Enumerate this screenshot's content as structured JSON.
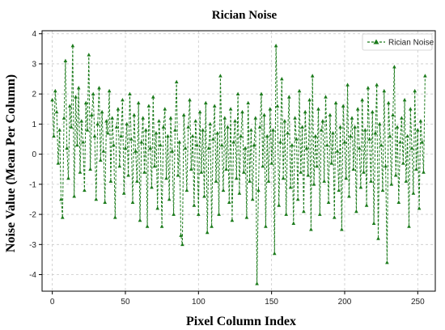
{
  "chart_data": {
    "type": "line",
    "title": "Rician Noise",
    "xlabel": "Pixel Column Index",
    "ylabel": "Noise Value (Mean Per Column)",
    "xlim": [
      -7,
      262
    ],
    "ylim": [
      -4.55,
      4.1
    ],
    "xticks": [
      0,
      50,
      100,
      150,
      200,
      250
    ],
    "yticks": [
      -4,
      -3,
      -2,
      -1,
      0,
      1,
      2,
      3,
      4
    ],
    "grid": true,
    "legend_position": "top-right",
    "series": [
      {
        "name": "Rician Noise",
        "color": "#1a7a1a",
        "line_style": "dashed",
        "marker": "triangle-up",
        "values": [
          1.8,
          0.6,
          2.1,
          1.4,
          -0.3,
          0.8,
          -1.5,
          -2.1,
          1.2,
          3.1,
          0.2,
          -0.8,
          1.6,
          0.9,
          3.6,
          -1.4,
          1.9,
          0.3,
          2.2,
          -0.6,
          1.1,
          0.4,
          -1.2,
          1.7,
          0.8,
          3.3,
          -0.5,
          1.3,
          2.0,
          0.6,
          -1.5,
          1.0,
          2.2,
          -0.2,
          1.4,
          0.1,
          -1.6,
          1.1,
          0.7,
          2.1,
          -0.9,
          1.2,
          0.3,
          -2.1,
          0.9,
          1.5,
          -0.4,
          0.6,
          1.8,
          -1.3,
          0.2,
          1.0,
          -0.7,
          2.0,
          0.5,
          -1.6,
          1.3,
          0.1,
          -0.9,
          1.7,
          -2.2,
          0.4,
          1.2,
          -0.6,
          0.8,
          -2.4,
          1.6,
          0.2,
          -1.1,
          1.9,
          -0.4,
          0.7,
          -1.8,
          1.1,
          0.3,
          -2.4,
          0.9,
          1.5,
          -0.8,
          0.6,
          -1.5,
          1.2,
          0.1,
          -2.0,
          0.8,
          2.4,
          -0.7,
          0.4,
          -2.7,
          -3.0,
          1.3,
          0.2,
          -1.2,
          0.9,
          1.8,
          -0.5,
          0.6,
          -1.7,
          1.1,
          0.3,
          -2.0,
          1.4,
          -0.6,
          0.8,
          -1.4,
          1.7,
          -2.6,
          0.2,
          1.0,
          -2.4,
          0.5,
          1.6,
          -0.9,
          0.7,
          -2.0,
          2.6,
          0.3,
          -1.2,
          1.2,
          -0.5,
          0.9,
          -1.6,
          1.5,
          -2.2,
          0.4,
          1.1,
          -0.8,
          2.0,
          -1.3,
          0.6,
          1.4,
          -0.6,
          0.2,
          -2.1,
          1.7,
          -0.9,
          0.8,
          -1.5,
          0.3,
          1.2,
          -4.3,
          -1.2,
          0.9,
          2.0,
          -0.4,
          1.3,
          -2.4,
          0.6,
          -0.9,
          1.5,
          -0.3,
          0.8,
          -3.3,
          3.6,
          1.6,
          -1.7,
          0.4,
          2.5,
          -0.8,
          1.1,
          -2.0,
          0.7,
          1.9,
          -1.1,
          0.3,
          -2.3,
          1.2,
          0.5,
          -1.5,
          2.1,
          -0.6,
          0.9,
          -1.9,
          1.4,
          0.2,
          -0.7,
          1.8,
          -2.5,
          2.6,
          -1.0,
          0.6,
          -0.4,
          1.5,
          -2.0,
          0.8,
          1.1,
          -0.9,
          1.9,
          0.3,
          -1.6,
          1.3,
          -0.3,
          0.7,
          -2.1,
          1.7,
          0.1,
          -1.2,
          0.9,
          -2.5,
          1.6,
          0.4,
          -0.8,
          2.3,
          -1.4,
          0.6,
          1.2,
          -0.5,
          0.9,
          -1.9,
          1.5,
          0.2,
          -1.1,
          1.8,
          -0.6,
          0.8,
          -1.7,
          2.2,
          0.5,
          -0.9,
          1.4,
          -2.3,
          0.7,
          2.3,
          -2.8,
          1.0,
          0.3,
          -1.2,
          2.1,
          -0.4,
          -3.6,
          1.7,
          0.6,
          -1.0,
          1.3,
          2.9,
          -0.7,
          0.9,
          -1.6,
          0.4,
          1.2,
          -0.3,
          1.8,
          -0.9,
          0.6,
          -2.4,
          1.5,
          0.2,
          -1.3,
          2.1,
          -0.5,
          0.8,
          -1.8,
          1.1,
          0.4,
          -0.6,
          2.6
        ]
      }
    ]
  }
}
